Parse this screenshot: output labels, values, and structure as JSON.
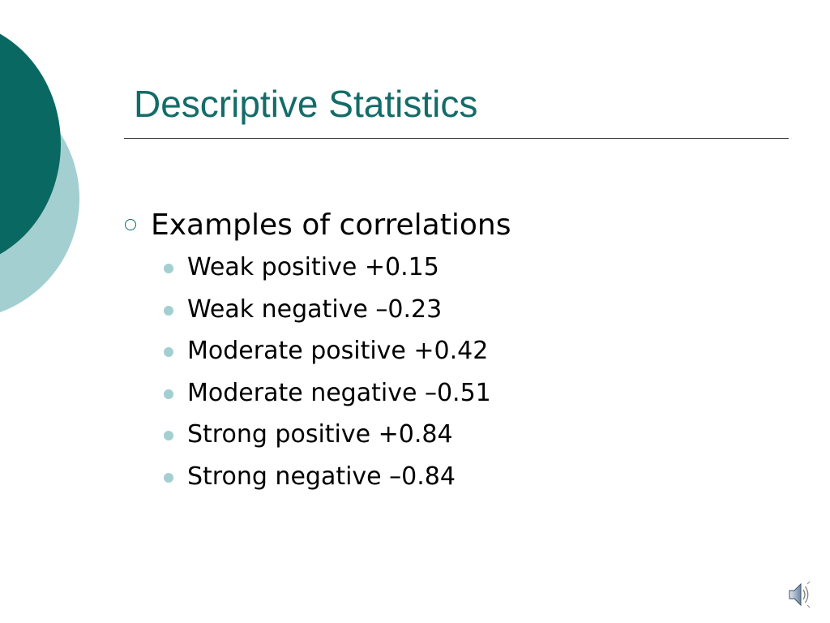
{
  "slide": {
    "title": "Descriptive Statistics",
    "bullet": "Examples of correlations",
    "sub_bullets": [
      "Weak positive +0.15",
      "Weak negative –0.23",
      "Moderate positive +0.42",
      "Moderate negative –0.51",
      "Strong positive +0.84",
      "Strong negative –0.84"
    ]
  },
  "icons": {
    "main_bullet": "hollow-circle-bullet-icon",
    "sub_bullet": "filled-dot-bullet-icon",
    "audio": "speaker-icon"
  },
  "colors": {
    "accent_dark": "#096862",
    "accent_light": "#a3cfd1",
    "title": "#136c69"
  }
}
